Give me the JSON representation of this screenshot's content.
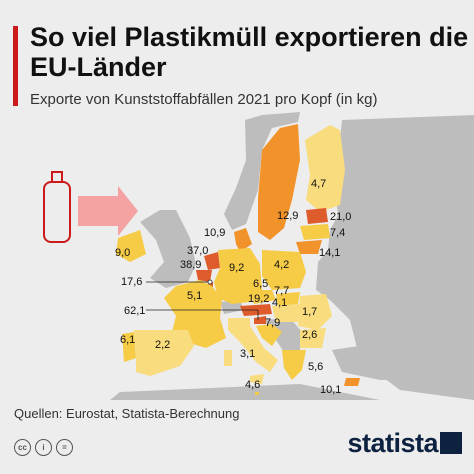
{
  "header": {
    "title": "So viel Plastikmüll exportieren die EU-Länder",
    "subtitle": "Exporte von Kunststoffabfällen 2021 pro Kopf (in kg)"
  },
  "map_data": {
    "colors": {
      "dark": "#de5b2b",
      "orange": "#f2922a",
      "yellow": "#f6cb46",
      "light": "#f8dc7d",
      "non_eu": "#bdbdbd",
      "sea": "#ededed"
    },
    "values": [
      {
        "country": "Finnland",
        "value": "4,7"
      },
      {
        "country": "Schweden",
        "value": "12,9"
      },
      {
        "country": "Estland",
        "value": "21,0"
      },
      {
        "country": "Lettland",
        "value": "7,4"
      },
      {
        "country": "Litauen",
        "value": "14,1"
      },
      {
        "country": "Dänemark",
        "value": "10,9"
      },
      {
        "country": "Irland",
        "value": "9,0"
      },
      {
        "country": "Niederlande",
        "value": "37,0"
      },
      {
        "country": "Belgien",
        "value": "38,9"
      },
      {
        "country": "Luxemburg",
        "value": "17,6"
      },
      {
        "country": "Deutschland",
        "value": "9,2"
      },
      {
        "country": "Polen",
        "value": "4,2"
      },
      {
        "country": "Tschechien",
        "value": "6,5"
      },
      {
        "country": "Slowakei",
        "value": "7,7"
      },
      {
        "country": "Österreich",
        "value": "19,2"
      },
      {
        "country": "Ungarn",
        "value": "4,1"
      },
      {
        "country": "Frankreich",
        "value": "5,1"
      },
      {
        "country": "Slowenien",
        "value": "62,1"
      },
      {
        "country": "Kroatien",
        "value": "7,9"
      },
      {
        "country": "Rumänien",
        "value": "1,7"
      },
      {
        "country": "Bulgarien",
        "value": "2,6"
      },
      {
        "country": "Portugal",
        "value": "6,1"
      },
      {
        "country": "Spanien",
        "value": "2,2"
      },
      {
        "country": "Italien",
        "value": "3,1"
      },
      {
        "country": "Griechenland",
        "value": "5,6"
      },
      {
        "country": "Malta",
        "value": "4,6"
      },
      {
        "country": "Zypern",
        "value": "10,1"
      }
    ]
  },
  "footer": {
    "sources": "Quellen: Eurostat, Statista-Berechnung",
    "brand": "statista",
    "license_icons": [
      "cc-icon",
      "by-icon",
      "nd-icon"
    ]
  }
}
